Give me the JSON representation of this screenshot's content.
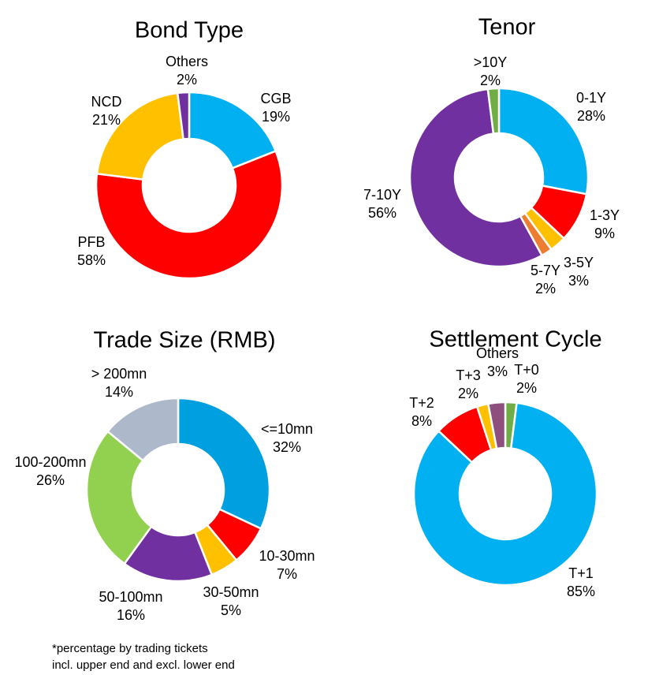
{
  "footnote": {
    "line1": "*percentage by trading tickets",
    "line2": "incl. upper end and excl. lower end"
  },
  "chart_data": [
    {
      "type": "pie",
      "donut": true,
      "title": "Bond Type",
      "start_angle_deg": 0,
      "slices": [
        {
          "name": "CGB",
          "value": 19,
          "display": "19%",
          "color": "#00B0F0"
        },
        {
          "name": "PFB",
          "value": 58,
          "display": "58%",
          "color": "#FF0000"
        },
        {
          "name": "NCD",
          "value": 21,
          "display": "21%",
          "color": "#FFC000"
        },
        {
          "name": "Others",
          "value": 2,
          "display": "2%",
          "color": "#7030A0"
        }
      ]
    },
    {
      "type": "pie",
      "donut": true,
      "title": "Tenor",
      "start_angle_deg": 0,
      "slices": [
        {
          "name": "0-1Y",
          "value": 28,
          "display": "28%",
          "color": "#00B0F0"
        },
        {
          "name": "1-3Y",
          "value": 9,
          "display": "9%",
          "color": "#FF0000"
        },
        {
          "name": "3-5Y",
          "value": 3,
          "display": "3%",
          "color": "#FFC000"
        },
        {
          "name": "5-7Y",
          "value": 2,
          "display": "2%",
          "color": "#ED7D31"
        },
        {
          "name": "7-10Y",
          "value": 56,
          "display": "56%",
          "color": "#7030A0"
        },
        {
          "name": ">10Y",
          "value": 2,
          "display": "2%",
          "color": "#70AD47"
        }
      ]
    },
    {
      "type": "pie",
      "donut": true,
      "title": "Trade Size (RMB)",
      "start_angle_deg": 0,
      "slices": [
        {
          "name": "<=10mn",
          "value": 32,
          "display": "32%",
          "color": "#00A0E0"
        },
        {
          "name": "10-30mn",
          "value": 7,
          "display": "7%",
          "color": "#FF0000"
        },
        {
          "name": "30-50mn",
          "value": 5,
          "display": "5%",
          "color": "#FFC000"
        },
        {
          "name": "50-100mn",
          "value": 16,
          "display": "16%",
          "color": "#7030A0"
        },
        {
          "name": "100-200mn",
          "value": 26,
          "display": "26%",
          "color": "#92D050"
        },
        {
          "name": "> 200mn",
          "value": 14,
          "display": "14%",
          "color": "#ADB9CA"
        }
      ]
    },
    {
      "type": "pie",
      "donut": true,
      "title": "Settlement Cycle",
      "start_angle_deg": 0,
      "slices": [
        {
          "name": "T+0",
          "value": 2,
          "display": "2%",
          "color": "#70AD47"
        },
        {
          "name": "T+1",
          "value": 85,
          "display": "85%",
          "color": "#00B0F0"
        },
        {
          "name": "T+2",
          "value": 8,
          "display": "8%",
          "color": "#FF0000"
        },
        {
          "name": "T+3",
          "value": 2,
          "display": "2%",
          "color": "#FFC000"
        },
        {
          "name": "Others",
          "value": 3,
          "display": "3%",
          "color": "#8E4F7F"
        }
      ]
    }
  ]
}
